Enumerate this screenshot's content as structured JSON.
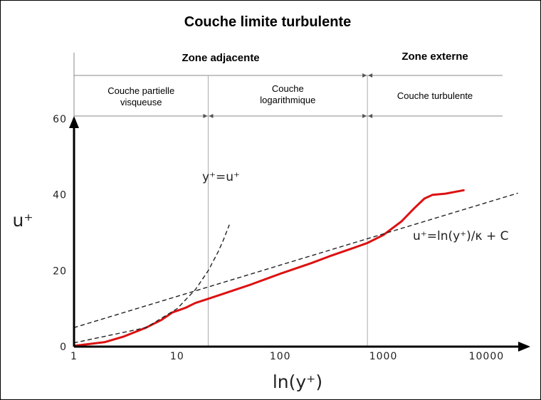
{
  "chart_data": {
    "type": "line",
    "title": "Couche limite turbulente",
    "xlabel": "ln(y⁺)",
    "ylabel": "u⁺",
    "x_scale": "log",
    "xlim": [
      1,
      20000
    ],
    "ylim": [
      0,
      60
    ],
    "x_ticks": [
      {
        "value": 1,
        "label": "1"
      },
      {
        "value": 10,
        "label": "10"
      },
      {
        "value": 100,
        "label": "100"
      },
      {
        "value": 1000,
        "label": "1000"
      },
      {
        "value": 10000,
        "label": "10000"
      }
    ],
    "y_ticks": [
      {
        "value": 0,
        "label": "0"
      },
      {
        "value": 20,
        "label": "20"
      },
      {
        "value": 40,
        "label": "40"
      },
      {
        "value": 60,
        "label": "60"
      }
    ],
    "zones": [
      {
        "label": "Zone adjacente",
        "x_start": 1,
        "x_end": 700
      },
      {
        "label": "Zone externe",
        "x_start": 700,
        "x_end": 20000
      }
    ],
    "subzones": [
      {
        "label": "Couche partielle visqueuse",
        "lines": [
          "Couche partielle",
          "visqueuse"
        ],
        "x_start": 1,
        "x_end": 20
      },
      {
        "label": "Couche logarithmique",
        "lines": [
          "Couche",
          "logarithmique"
        ],
        "x_start": 20,
        "x_end": 700
      },
      {
        "label": "Couche turbulente",
        "lines": [
          "Couche turbulente"
        ],
        "x_start": 700,
        "x_end": 20000
      }
    ],
    "zone_boundaries": [
      20,
      700
    ],
    "series": [
      {
        "name": "",
        "color": "#dd1111",
        "style": "solid",
        "x": [
          1,
          2,
          3,
          5,
          7,
          9,
          12,
          15,
          20,
          30,
          50,
          100,
          200,
          300,
          500,
          700,
          1000,
          1500,
          2000,
          2500,
          3000,
          4000,
          6000
        ],
        "y": [
          0.2,
          1.2,
          2.6,
          5.0,
          7.0,
          9.0,
          10.2,
          11.5,
          12.6,
          14.2,
          16.2,
          19.2,
          22.0,
          23.8,
          25.9,
          27.3,
          29.4,
          33.0,
          36.5,
          39.0,
          40.0,
          40.3,
          41.2
        ]
      },
      {
        "name": "",
        "color": "#222222",
        "style": "dashed",
        "x": [
          1,
          5,
          10,
          15,
          20,
          25,
          28,
          32
        ],
        "y": [
          1,
          5,
          10,
          15,
          20,
          25,
          28,
          32
        ]
      },
      {
        "name": "",
        "color": "#222222",
        "style": "dashed",
        "x": [
          1,
          20000
        ],
        "y": [
          5.0,
          40.4
        ]
      }
    ],
    "annotations": [
      {
        "label": "y⁺=u⁺"
      },
      {
        "label": "u⁺=ln(y⁺)/κ + C"
      }
    ]
  }
}
